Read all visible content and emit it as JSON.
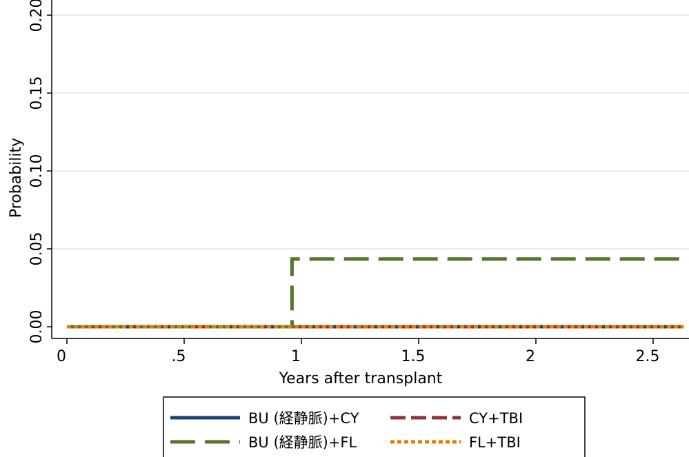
{
  "chart_data": {
    "type": "line",
    "title": "",
    "xlabel": "Years after transplant",
    "ylabel": "Probability",
    "xlim": [
      -0.02,
      2.63
    ],
    "ylim": [
      -0.005,
      0.205
    ],
    "x_ticks": [
      0,
      0.5,
      1,
      1.5,
      2,
      2.5
    ],
    "x_tick_labels": [
      "0",
      ".5",
      "1",
      "1.5",
      "2",
      "2.5"
    ],
    "y_ticks": [
      0,
      0.05,
      0.1,
      0.15,
      0.2
    ],
    "y_tick_labels": [
      "0.00",
      "0.05",
      "0.10",
      "0.15",
      "0.20"
    ],
    "grid": "horizontal",
    "legend_position": "bottom",
    "series": [
      {
        "name": "BU (経静脈)+CY",
        "color": "#1a476f",
        "dash": "solid",
        "points": [
          [
            0,
            0
          ],
          [
            2.63,
            0
          ]
        ]
      },
      {
        "name": "CY+TBI",
        "color": "#90353b",
        "dash": "dash",
        "points": [
          [
            0,
            0
          ],
          [
            2.63,
            0
          ]
        ]
      },
      {
        "name": "BU (経静脈)+FL",
        "color": "#55752f",
        "dash": "longdash",
        "points": [
          [
            0,
            0
          ],
          [
            0.96,
            0
          ],
          [
            0.96,
            0.0435
          ],
          [
            2.63,
            0.0435
          ]
        ]
      },
      {
        "name": "FL+TBI",
        "color": "#e37e00",
        "dash": "dot",
        "points": [
          [
            0,
            0
          ],
          [
            2.63,
            0
          ]
        ]
      }
    ]
  }
}
